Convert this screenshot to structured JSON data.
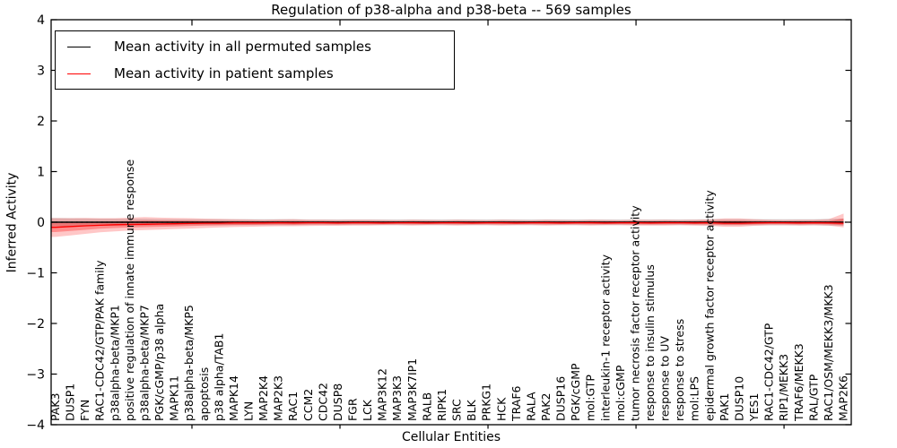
{
  "title": "Regulation of p38-alpha and p38-beta -- 569 samples",
  "legend": {
    "items": [
      {
        "label": "Mean activity in all permuted samples",
        "color": "#000000"
      },
      {
        "label": "Mean activity in patient samples",
        "color": "#ff0000"
      }
    ]
  },
  "axes": {
    "xlabel": "Cellular Entities",
    "ylabel": "Inferred Activity",
    "ytick_values": [
      4,
      3,
      2,
      1,
      0,
      -1,
      -2,
      -3,
      -4
    ],
    "ytick_labels": [
      "4",
      "3",
      "2",
      "1",
      "0",
      "−1",
      "−2",
      "−3",
      "−4"
    ]
  },
  "chart_data": {
    "type": "line",
    "title": "Regulation of p38-alpha and p38-beta -- 569 samples",
    "xlabel": "Cellular Entities",
    "ylabel": "Inferred Activity",
    "ylim": [
      -4,
      4
    ],
    "grid": false,
    "legend_position": "upper left",
    "baseline": 0,
    "categories": [
      "PAK3",
      "DUSP1",
      "FYN",
      "RAC1-CDC42/GTP/PAK family",
      "p38alpha-beta/MKP1",
      "positive regulation of innate immune response",
      "p38alpha-beta/MKP7",
      "PGK/cGMP/p38 alpha",
      "MAPK11",
      "p38alpha-beta/MKP5",
      "apoptosis",
      "p38 alpha/TAB1",
      "MAPK14",
      "LYN",
      "MAP2K4",
      "MAP2K3",
      "RAC1",
      "CCM2",
      "CDC42",
      "DUSP8",
      "FGR",
      "LCK",
      "MAP3K12",
      "MAP3K3",
      "MAP3K7IP1",
      "RALB",
      "RIPK1",
      "SRC",
      "BLK",
      "PRKG1",
      "HCK",
      "TRAF6",
      "RALA",
      "PAK2",
      "DUSP16",
      "PGK/cGMP",
      "mol:GTP",
      "interleukin-1 receptor activity",
      "mol:cGMP",
      "tumor necrosis factor receptor activity",
      "response to insulin stimulus",
      "response to UV",
      "response to stress",
      "mol:LPS",
      "epidermal growth factor receptor activity",
      "PAK1",
      "DUSP10",
      "YES1",
      "RAC1-CDC42/GTP",
      "RIP1/MEKK3",
      "TRAF6/MEKK3",
      "RAL/GTP",
      "RAC1/OSM/MEKK3/MKK3",
      "MAP2K6"
    ],
    "series": [
      {
        "name": "Mean activity in all permuted samples",
        "color": "#000000",
        "style": "solid",
        "values": [
          0,
          0,
          0,
          0,
          0,
          0,
          0,
          0,
          0,
          0,
          0,
          0,
          0,
          0,
          0,
          0,
          0,
          0,
          0,
          0,
          0,
          0,
          0,
          0,
          0,
          0,
          0,
          0,
          0,
          0,
          0,
          0,
          0,
          0,
          0,
          0,
          0,
          0,
          0,
          0,
          0,
          0,
          0,
          0,
          0,
          0,
          0,
          0,
          0,
          0,
          0,
          0,
          0,
          0
        ]
      },
      {
        "name": "Mean activity in patient samples",
        "color": "#ff0000",
        "style": "solid",
        "values": [
          -0.1,
          -0.085,
          -0.07,
          -0.06,
          -0.05,
          -0.045,
          -0.04,
          -0.035,
          -0.03,
          -0.025,
          -0.02,
          -0.02,
          -0.015,
          -0.015,
          -0.015,
          -0.01,
          -0.015,
          -0.01,
          -0.01,
          -0.015,
          -0.01,
          -0.01,
          -0.015,
          -0.01,
          -0.01,
          -0.015,
          -0.01,
          -0.01,
          -0.015,
          -0.01,
          -0.01,
          -0.015,
          -0.01,
          -0.01,
          -0.015,
          -0.01,
          -0.01,
          -0.015,
          -0.01,
          -0.01,
          -0.015,
          -0.01,
          -0.01,
          -0.015,
          -0.01,
          -0.02,
          -0.02,
          -0.015,
          -0.01,
          -0.01,
          -0.015,
          -0.01,
          -0.015,
          -0.02
        ]
      }
    ],
    "bands": [
      {
        "name": "permuted-samples-range",
        "color": "#000000",
        "opacity": 0.14,
        "hi": [
          0.085,
          0.08,
          0.075,
          0.07,
          0.07,
          0.065,
          0.065,
          0.06,
          0.06,
          0.06,
          0.06,
          0.06,
          0.06,
          0.06,
          0.06,
          0.06,
          0.06,
          0.055,
          0.055,
          0.055,
          0.055,
          0.055,
          0.055,
          0.055,
          0.055,
          0.055,
          0.055,
          0.055,
          0.055,
          0.055,
          0.055,
          0.055,
          0.055,
          0.055,
          0.055,
          0.055,
          0.055,
          0.055,
          0.055,
          0.055,
          0.055,
          0.055,
          0.055,
          0.055,
          0.06,
          0.06,
          0.06,
          0.06,
          0.06,
          0.06,
          0.06,
          0.06,
          0.065,
          0.07
        ],
        "lo": [
          -0.085,
          -0.08,
          -0.075,
          -0.07,
          -0.07,
          -0.065,
          -0.065,
          -0.06,
          -0.06,
          -0.06,
          -0.06,
          -0.06,
          -0.06,
          -0.06,
          -0.06,
          -0.06,
          -0.06,
          -0.055,
          -0.055,
          -0.055,
          -0.055,
          -0.055,
          -0.055,
          -0.055,
          -0.055,
          -0.055,
          -0.055,
          -0.055,
          -0.055,
          -0.055,
          -0.055,
          -0.055,
          -0.055,
          -0.055,
          -0.055,
          -0.055,
          -0.055,
          -0.055,
          -0.055,
          -0.055,
          -0.055,
          -0.055,
          -0.055,
          -0.055,
          -0.06,
          -0.06,
          -0.06,
          -0.06,
          -0.06,
          -0.06,
          -0.06,
          -0.06,
          -0.065,
          -0.07
        ]
      },
      {
        "name": "patient-samples-range",
        "color": "#ff0000",
        "opacity": 0.22,
        "hi": [
          0.08,
          0.08,
          0.085,
          0.08,
          0.08,
          0.09,
          0.1,
          0.09,
          0.085,
          0.08,
          0.07,
          0.065,
          0.06,
          0.055,
          0.05,
          0.055,
          0.06,
          0.05,
          0.05,
          0.045,
          0.05,
          0.05,
          0.045,
          0.04,
          0.05,
          0.045,
          0.04,
          0.05,
          0.045,
          0.04,
          0.05,
          0.045,
          0.04,
          0.05,
          0.045,
          0.04,
          0.05,
          0.045,
          0.04,
          0.05,
          0.045,
          0.05,
          0.045,
          0.05,
          0.055,
          0.075,
          0.075,
          0.06,
          0.05,
          0.045,
          0.05,
          0.05,
          0.06,
          0.17
        ],
        "lo": [
          -0.29,
          -0.26,
          -0.23,
          -0.2,
          -0.18,
          -0.165,
          -0.155,
          -0.145,
          -0.135,
          -0.125,
          -0.115,
          -0.105,
          -0.095,
          -0.09,
          -0.085,
          -0.08,
          -0.08,
          -0.075,
          -0.07,
          -0.07,
          -0.065,
          -0.065,
          -0.06,
          -0.06,
          -0.065,
          -0.06,
          -0.06,
          -0.065,
          -0.06,
          -0.06,
          -0.065,
          -0.06,
          -0.06,
          -0.065,
          -0.06,
          -0.06,
          -0.065,
          -0.06,
          -0.06,
          -0.065,
          -0.065,
          -0.065,
          -0.06,
          -0.065,
          -0.07,
          -0.09,
          -0.09,
          -0.07,
          -0.06,
          -0.06,
          -0.065,
          -0.06,
          -0.065,
          -0.1
        ]
      }
    ]
  }
}
